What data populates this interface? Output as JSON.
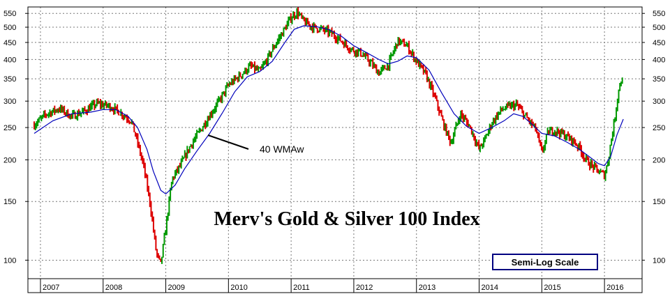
{
  "chart_data": {
    "type": "bar",
    "subtype": "ohlc-weekly-price-bars",
    "title": "Merv's Gold & Silver 100 Index",
    "scale_note": "Semi-Log Scale",
    "y_scale": "log",
    "ylim": [
      88,
      575
    ],
    "y_ticks": [
      100,
      150,
      200,
      250,
      300,
      350,
      400,
      450,
      500,
      550
    ],
    "x_range": [
      "2006-11",
      "2016-07"
    ],
    "x_tick_labels": [
      "2007",
      "2008",
      "2009",
      "2010",
      "2011",
      "2012",
      "2013",
      "2014",
      "2015",
      "2016"
    ],
    "grid": true,
    "colors": {
      "up": "#009900",
      "down": "#dd0000",
      "average": "#0000bb",
      "annotation_box": "#000080"
    },
    "series": [
      {
        "kind": "price",
        "description_points": {
          "x": [
            2006.9,
            2007.1,
            2007.3,
            2007.5,
            2007.7,
            2007.9,
            2008.1,
            2008.3,
            2008.45,
            2008.55,
            2008.65,
            2008.75,
            2008.85,
            2008.92,
            2009.0,
            2009.1,
            2009.25,
            2009.4,
            2009.55,
            2009.7,
            2009.85,
            2010.0,
            2010.2,
            2010.35,
            2010.5,
            2010.6,
            2010.75,
            2010.9,
            2011.0,
            2011.1,
            2011.2,
            2011.35,
            2011.5,
            2011.65,
            2011.8,
            2011.95,
            2012.1,
            2012.25,
            2012.4,
            2012.55,
            2012.7,
            2012.85,
            2013.0,
            2013.15,
            2013.3,
            2013.45,
            2013.55,
            2013.7,
            2013.85,
            2014.0,
            2014.1,
            2014.2,
            2014.35,
            2014.5,
            2014.6,
            2014.75,
            2014.9,
            2015.0,
            2015.1,
            2015.2,
            2015.35,
            2015.5,
            2015.6,
            2015.7,
            2015.8,
            2015.9,
            2016.0,
            2016.05,
            2016.1,
            2016.15,
            2016.2,
            2016.25,
            2016.3
          ],
          "y": [
            255,
            275,
            285,
            270,
            280,
            295,
            290,
            275,
            262,
            225,
            190,
            148,
            105,
            97,
            125,
            175,
            195,
            222,
            245,
            272,
            300,
            335,
            360,
            382,
            368,
            395,
            445,
            495,
            535,
            555,
            520,
            500,
            492,
            478,
            455,
            430,
            420,
            395,
            365,
            385,
            455,
            440,
            395,
            360,
            305,
            250,
            225,
            275,
            252,
            215,
            232,
            258,
            282,
            290,
            292,
            268,
            248,
            210,
            242,
            246,
            238,
            228,
            218,
            200,
            192,
            185,
            180,
            195,
            225,
            255,
            300,
            345,
            340
          ]
        }
      },
      {
        "name": "40 WMAw",
        "kind": "moving-average",
        "x": [
          2006.9,
          2007.2,
          2007.5,
          2007.8,
          2008.0,
          2008.2,
          2008.4,
          2008.55,
          2008.7,
          2008.8,
          2008.92,
          2009.0,
          2009.15,
          2009.3,
          2009.5,
          2009.7,
          2009.9,
          2010.1,
          2010.3,
          2010.5,
          2010.7,
          2010.9,
          2011.05,
          2011.2,
          2011.4,
          2011.6,
          2011.8,
          2012.0,
          2012.2,
          2012.4,
          2012.55,
          2012.7,
          2012.85,
          2013.0,
          2013.2,
          2013.4,
          2013.6,
          2013.8,
          2014.0,
          2014.2,
          2014.4,
          2014.55,
          2014.7,
          2014.85,
          2015.0,
          2015.2,
          2015.4,
          2015.6,
          2015.75,
          2015.9,
          2016.0,
          2016.1,
          2016.2,
          2016.3
        ],
        "y": [
          240,
          262,
          275,
          278,
          283,
          283,
          270,
          250,
          215,
          185,
          162,
          158,
          168,
          188,
          213,
          240,
          276,
          320,
          355,
          368,
          395,
          450,
          493,
          505,
          502,
          492,
          470,
          440,
          420,
          400,
          388,
          395,
          410,
          405,
          372,
          318,
          275,
          252,
          240,
          250,
          262,
          275,
          270,
          255,
          240,
          236,
          226,
          215,
          205,
          195,
          192,
          205,
          238,
          265
        ]
      }
    ],
    "annotations": [
      {
        "text": "40 WMAw",
        "points_to": "moving-average"
      }
    ]
  }
}
